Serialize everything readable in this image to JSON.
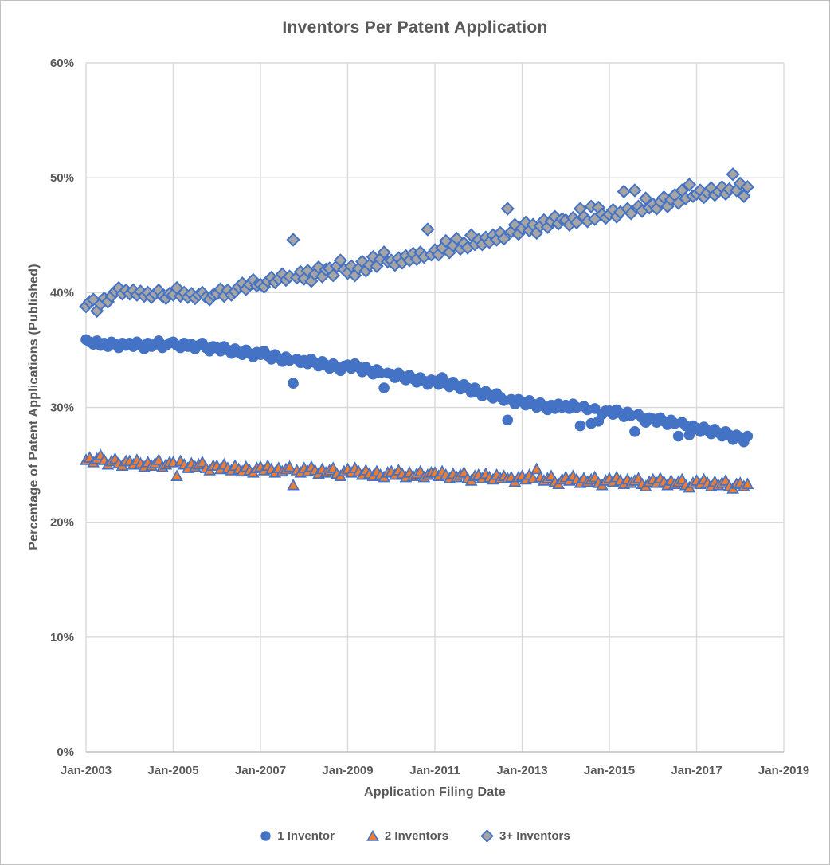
{
  "chart_data": {
    "type": "scatter",
    "title": "Inventors Per Patent Application",
    "xlabel": "Application Filing Date",
    "ylabel": "Percentage of Patent Applications (Published)",
    "xlim_years": [
      2003,
      2019
    ],
    "ylim_percent": [
      0,
      60
    ],
    "grid": true,
    "legend_position": "bottom",
    "x_interval": "monthly",
    "x_start": {
      "year": 2003,
      "month": 1
    },
    "x_ticks": [
      {
        "year": 2003,
        "label": "Jan-2003"
      },
      {
        "year": 2005,
        "label": "Jan-2005"
      },
      {
        "year": 2007,
        "label": "Jan-2007"
      },
      {
        "year": 2009,
        "label": "Jan-2009"
      },
      {
        "year": 2011,
        "label": "Jan-2011"
      },
      {
        "year": 2013,
        "label": "Jan-2013"
      },
      {
        "year": 2015,
        "label": "Jan-2015"
      },
      {
        "year": 2017,
        "label": "Jan-2017"
      },
      {
        "year": 2019,
        "label": "Jan-2019"
      }
    ],
    "y_ticks": [
      {
        "value": 0,
        "label": "0%"
      },
      {
        "value": 10,
        "label": "10%"
      },
      {
        "value": 20,
        "label": "20%"
      },
      {
        "value": 30,
        "label": "30%"
      },
      {
        "value": 40,
        "label": "40%"
      },
      {
        "value": 50,
        "label": "50%"
      },
      {
        "value": 60,
        "label": "60%"
      }
    ],
    "series": [
      {
        "name": "1 Inventor",
        "marker": "circle",
        "fill": "#4472C4",
        "stroke": "#4472C4",
        "values": [
          35.9,
          35.7,
          35.5,
          35.8,
          35.4,
          35.6,
          35.3,
          35.7,
          35.5,
          35.2,
          35.6,
          35.4,
          35.6,
          35.3,
          35.7,
          35.4,
          35.1,
          35.6,
          35.3,
          35.5,
          35.8,
          35.2,
          35.4,
          35.6,
          35.7,
          35.4,
          35.2,
          35.6,
          35.3,
          35.5,
          35.1,
          35.4,
          35.6,
          35.2,
          34.9,
          35.3,
          35.2,
          34.9,
          35.3,
          35.0,
          34.7,
          35.1,
          34.8,
          34.6,
          35.0,
          34.7,
          34.4,
          34.8,
          34.6,
          34.9,
          34.5,
          34.2,
          34.6,
          34.3,
          34.0,
          34.4,
          34.1,
          32.1,
          34.2,
          33.9,
          34.1,
          33.8,
          34.2,
          33.9,
          33.6,
          34.0,
          33.7,
          33.4,
          33.8,
          33.5,
          33.2,
          33.6,
          33.7,
          33.4,
          33.8,
          33.5,
          33.1,
          33.5,
          33.2,
          32.9,
          33.3,
          33.0,
          31.7,
          33.0,
          32.9,
          32.6,
          33.0,
          32.7,
          32.4,
          32.8,
          32.5,
          32.2,
          32.6,
          32.3,
          32.0,
          32.4,
          32.3,
          32.0,
          32.6,
          32.1,
          31.8,
          32.2,
          31.9,
          31.6,
          32.0,
          31.7,
          31.3,
          31.7,
          31.3,
          31.0,
          31.4,
          31.1,
          30.8,
          31.2,
          30.9,
          30.6,
          28.9,
          30.7,
          30.3,
          30.7,
          30.5,
          30.2,
          30.6,
          30.3,
          30.0,
          30.4,
          30.1,
          29.8,
          30.2,
          29.9,
          30.3,
          30.0,
          30.2,
          29.9,
          30.3,
          30.0,
          28.4,
          30.1,
          29.8,
          28.6,
          29.9,
          28.8,
          29.4,
          29.7,
          29.7,
          29.4,
          29.8,
          29.5,
          29.2,
          29.6,
          29.3,
          27.9,
          29.4,
          29.1,
          28.7,
          29.1,
          29.0,
          28.7,
          29.1,
          28.8,
          28.5,
          28.9,
          28.6,
          27.5,
          28.7,
          28.4,
          27.6,
          28.4,
          28.2,
          27.9,
          28.3,
          28.0,
          27.7,
          28.1,
          27.8,
          27.5,
          27.9,
          27.6,
          27.2,
          27.6,
          27.4,
          27.0,
          27.5
        ]
      },
      {
        "name": "2 Inventors",
        "marker": "triangle",
        "fill": "#ED7D31",
        "stroke": "#4472C4",
        "values": [
          25.4,
          25.6,
          25.2,
          25.5,
          25.8,
          25.4,
          25.0,
          25.3,
          25.5,
          25.1,
          24.9,
          25.3,
          25.3,
          25.0,
          25.4,
          25.1,
          24.8,
          25.2,
          24.9,
          25.1,
          25.4,
          24.8,
          25.0,
          25.2,
          25.2,
          24.0,
          25.3,
          25.0,
          24.7,
          25.1,
          24.8,
          25.0,
          25.2,
          24.7,
          24.5,
          24.9,
          24.9,
          24.6,
          25.0,
          24.7,
          24.5,
          24.9,
          24.6,
          24.4,
          24.8,
          24.5,
          24.3,
          24.7,
          24.8,
          24.5,
          24.9,
          24.6,
          24.3,
          24.7,
          24.4,
          24.6,
          24.8,
          23.2,
          24.5,
          24.3,
          24.7,
          24.4,
          24.8,
          24.5,
          24.2,
          24.6,
          24.3,
          24.5,
          24.7,
          24.2,
          24.0,
          24.4,
          24.6,
          24.3,
          24.7,
          24.4,
          24.1,
          24.5,
          24.2,
          24.0,
          24.4,
          24.1,
          23.9,
          24.3,
          24.4,
          24.1,
          24.5,
          24.2,
          23.9,
          24.3,
          24.0,
          24.2,
          24.4,
          23.9,
          24.1,
          24.3,
          24.3,
          24.0,
          24.4,
          24.1,
          23.8,
          24.2,
          23.9,
          24.1,
          24.3,
          23.8,
          23.6,
          24.0,
          24.1,
          23.8,
          24.2,
          23.9,
          23.7,
          24.1,
          23.8,
          24.0,
          23.8,
          23.9,
          23.5,
          23.9,
          24.0,
          23.7,
          24.1,
          23.8,
          24.6,
          23.9,
          23.6,
          23.8,
          24.0,
          23.5,
          23.3,
          23.7,
          23.9,
          23.6,
          24.0,
          23.7,
          23.4,
          23.8,
          23.5,
          23.7,
          23.9,
          23.4,
          23.2,
          23.6,
          23.8,
          23.5,
          23.9,
          23.6,
          23.3,
          23.7,
          23.4,
          23.6,
          23.8,
          23.3,
          23.1,
          23.5,
          23.7,
          23.4,
          23.8,
          23.5,
          23.2,
          23.6,
          23.3,
          23.5,
          23.7,
          23.2,
          23.0,
          23.4,
          23.6,
          23.3,
          23.7,
          23.4,
          23.1,
          23.5,
          23.2,
          23.4,
          23.6,
          23.1,
          22.9,
          23.3,
          23.4,
          23.1,
          23.3
        ]
      },
      {
        "name": "3+ Inventors",
        "marker": "diamond",
        "fill": "#A5A5A5",
        "stroke": "#4472C4",
        "values": [
          38.8,
          39.2,
          39.4,
          38.4,
          39.0,
          39.5,
          39.2,
          39.7,
          40.1,
          40.4,
          39.9,
          40.2,
          39.9,
          40.2,
          39.8,
          40.1,
          39.7,
          40.0,
          39.6,
          39.9,
          40.2,
          39.7,
          39.5,
          39.9,
          39.8,
          40.4,
          39.7,
          40.0,
          39.6,
          39.9,
          39.5,
          39.8,
          40.0,
          39.6,
          39.4,
          39.8,
          39.9,
          40.3,
          39.7,
          40.2,
          39.8,
          40.1,
          40.5,
          40.8,
          40.3,
          40.7,
          41.1,
          40.6,
          40.7,
          40.5,
          41.0,
          41.3,
          40.9,
          41.2,
          41.6,
          41.1,
          41.4,
          44.6,
          41.3,
          41.8,
          41.2,
          41.9,
          41.0,
          41.6,
          42.2,
          41.4,
          42.0,
          42.1,
          41.5,
          42.3,
          42.8,
          42.0,
          41.7,
          42.3,
          41.5,
          42.1,
          42.7,
          41.9,
          42.4,
          43.1,
          42.3,
          42.9,
          43.5,
          42.7,
          42.8,
          42.4,
          43.0,
          42.6,
          43.2,
          42.8,
          43.4,
          42.9,
          43.5,
          43.1,
          45.5,
          43.3,
          43.7,
          43.3,
          43.9,
          44.5,
          43.5,
          44.1,
          44.7,
          43.8,
          44.3,
          43.9,
          45.0,
          44.2,
          44.6,
          44.2,
          44.8,
          44.4,
          45.0,
          44.6,
          45.2,
          44.7,
          47.3,
          45.3,
          45.9,
          45.1,
          45.6,
          46.1,
          45.4,
          45.9,
          45.2,
          45.8,
          46.3,
          45.7,
          46.2,
          46.6,
          46.0,
          46.4,
          46.3,
          45.9,
          46.5,
          46.1,
          47.3,
          46.6,
          46.2,
          47.5,
          46.4,
          47.4,
          46.8,
          46.5,
          46.8,
          47.2,
          46.6,
          47.0,
          48.8,
          47.3,
          46.9,
          48.9,
          47.5,
          47.1,
          48.2,
          47.4,
          47.7,
          47.3,
          47.9,
          48.3,
          47.5,
          48.1,
          48.5,
          47.8,
          48.9,
          48.2,
          49.4,
          48.4,
          48.6,
          48.9,
          48.3,
          48.7,
          49.1,
          48.5,
          48.8,
          49.2,
          48.6,
          49.0,
          50.3,
          48.9,
          49.5,
          48.4,
          49.2
        ]
      }
    ]
  },
  "colors": {
    "accent_blue": "#4472C4",
    "orange": "#ED7D31",
    "marker_gray": "#A5A5A5",
    "gridline": "#D9D9D9",
    "axis_line": "#BFBFBF",
    "text": "#595959"
  }
}
